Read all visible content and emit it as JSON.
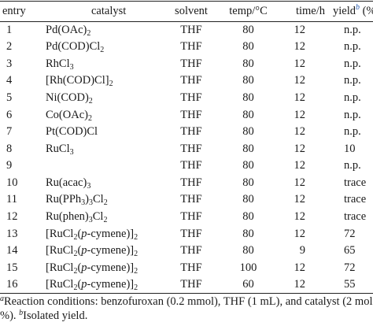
{
  "headers": {
    "entry": "entry",
    "catalyst": "catalyst",
    "solvent": "solvent",
    "temp": "temp/°C",
    "time": "time/h",
    "yield_word": "yield",
    "yield_sup": "b",
    "yield_unit": " (%)"
  },
  "rows": [
    {
      "entry": "1",
      "cat": [
        {
          "t": "Pd(OAc)"
        },
        {
          "s": "2"
        }
      ],
      "solvent": "THF",
      "temp": "80",
      "time": "12",
      "yield": "n.p."
    },
    {
      "entry": "2",
      "cat": [
        {
          "t": "Pd(COD)Cl"
        },
        {
          "s": "2"
        }
      ],
      "solvent": "THF",
      "temp": "80",
      "time": "12",
      "yield": "n.p."
    },
    {
      "entry": "3",
      "cat": [
        {
          "t": "RhCl"
        },
        {
          "s": "3"
        }
      ],
      "solvent": "THF",
      "temp": "80",
      "time": "12",
      "yield": "n.p."
    },
    {
      "entry": "4",
      "cat": [
        {
          "t": "[Rh(COD)Cl]"
        },
        {
          "s": "2"
        }
      ],
      "solvent": "THF",
      "temp": "80",
      "time": "12",
      "yield": "n.p."
    },
    {
      "entry": "5",
      "cat": [
        {
          "t": "Ni(COD)"
        },
        {
          "s": "2"
        }
      ],
      "solvent": "THF",
      "temp": "80",
      "time": "12",
      "yield": "n.p."
    },
    {
      "entry": "6",
      "cat": [
        {
          "t": "Co(OAc)"
        },
        {
          "s": "2"
        }
      ],
      "solvent": "THF",
      "temp": "80",
      "time": "12",
      "yield": "n.p."
    },
    {
      "entry": "7",
      "cat": [
        {
          "t": "Pt(COD)Cl"
        }
      ],
      "solvent": "THF",
      "temp": "80",
      "time": "12",
      "yield": "n.p."
    },
    {
      "entry": "8",
      "cat": [
        {
          "t": "RuCl"
        },
        {
          "s": "3"
        }
      ],
      "solvent": "THF",
      "temp": "80",
      "time": "12",
      "yield": "10"
    },
    {
      "entry": "9",
      "cat": [],
      "solvent": "THF",
      "temp": "80",
      "time": "12",
      "yield": "n.p."
    },
    {
      "entry": "10",
      "cat": [
        {
          "t": "Ru(acac)"
        },
        {
          "s": "3"
        }
      ],
      "solvent": "THF",
      "temp": "80",
      "time": "12",
      "yield": "trace"
    },
    {
      "entry": "11",
      "cat": [
        {
          "t": "Ru(PPh"
        },
        {
          "s": "3"
        },
        {
          "t": ")"
        },
        {
          "s": "3"
        },
        {
          "t": "Cl"
        },
        {
          "s": "2"
        }
      ],
      "solvent": "THF",
      "temp": "80",
      "time": "12",
      "yield": "trace"
    },
    {
      "entry": "12",
      "cat": [
        {
          "t": "Ru(phen)"
        },
        {
          "s": "3"
        },
        {
          "t": "Cl"
        },
        {
          "s": "2"
        }
      ],
      "solvent": "THF",
      "temp": "80",
      "time": "12",
      "yield": "trace"
    },
    {
      "entry": "13",
      "cat": [
        {
          "t": "[RuCl"
        },
        {
          "s": "2"
        },
        {
          "t": "("
        },
        {
          "i": "p"
        },
        {
          "t": "-cymene)]"
        },
        {
          "s": "2"
        }
      ],
      "solvent": "THF",
      "temp": "80",
      "time": "12",
      "yield": "72"
    },
    {
      "entry": "14",
      "cat": [
        {
          "t": "[RuCl"
        },
        {
          "s": "2"
        },
        {
          "t": "("
        },
        {
          "i": "p"
        },
        {
          "t": "-cymene)]"
        },
        {
          "s": "2"
        }
      ],
      "solvent": "THF",
      "temp": "80",
      "time": "9",
      "yield": "65"
    },
    {
      "entry": "15",
      "cat": [
        {
          "t": "[RuCl"
        },
        {
          "s": "2"
        },
        {
          "t": "("
        },
        {
          "i": "p"
        },
        {
          "t": "-cymene)]"
        },
        {
          "s": "2"
        }
      ],
      "solvent": "THF",
      "temp": "100",
      "time": "12",
      "yield": "72"
    },
    {
      "entry": "16",
      "cat": [
        {
          "t": "[RuCl"
        },
        {
          "s": "2"
        },
        {
          "t": "("
        },
        {
          "i": "p"
        },
        {
          "t": "-cymene)]"
        },
        {
          "s": "2"
        }
      ],
      "solvent": "THF",
      "temp": "60",
      "time": "12",
      "yield": "55"
    }
  ],
  "footnote": {
    "a_mark": "a",
    "a_text": "Reaction conditions: benzofuroxan (0.2 mmol), THF (1 mL), and catalyst (2 mol %).",
    "b_mark": "b",
    "b_text": "Isolated yield."
  }
}
